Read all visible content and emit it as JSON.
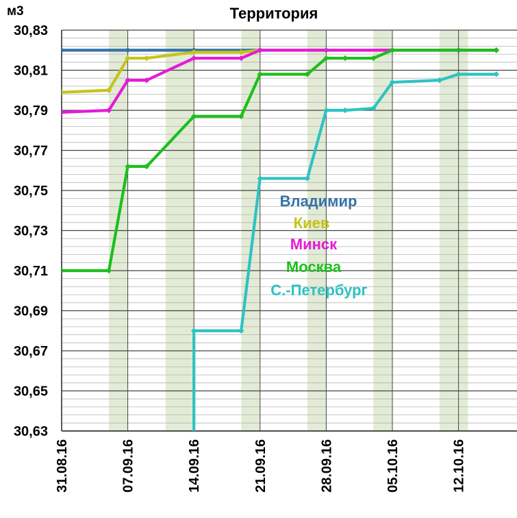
{
  "chart_data": {
    "type": "line",
    "title": "Территория",
    "ylabel": "м3",
    "ylim": [
      30.63,
      30.83
    ],
    "y_ticks": [
      "30,63",
      "30,65",
      "30,67",
      "30,69",
      "30,71",
      "30,73",
      "30,75",
      "30,77",
      "30,79",
      "30,81",
      "30,83"
    ],
    "x_tick_labels": [
      "31.08.16",
      "07.09.16",
      "14.09.16",
      "21.09.16",
      "28.09.16",
      "05.10.16",
      "12.10.16"
    ],
    "grid": true,
    "legend_placement": "center-right",
    "series": [
      {
        "name": "Владимир",
        "color": "#3572A8",
        "points": [
          [
            "31.08.16",
            30.82
          ],
          [
            "07.09.16",
            30.82
          ],
          [
            "14.09.16",
            30.82
          ],
          [
            "21.09.16",
            30.82
          ],
          [
            "28.09.16",
            30.82
          ],
          [
            "05.10.16",
            30.82
          ],
          [
            "12.10.16",
            30.82
          ],
          [
            "16.10.16",
            30.82
          ]
        ]
      },
      {
        "name": "Киев",
        "color": "#C4C41A",
        "points": [
          [
            "31.08.16",
            30.799
          ],
          [
            "05.09.16",
            30.8
          ],
          [
            "07.09.16",
            30.816
          ],
          [
            "09.09.16",
            30.816
          ],
          [
            "14.09.16",
            30.819
          ],
          [
            "19.09.16",
            30.819
          ],
          [
            "21.09.16",
            30.82
          ],
          [
            "16.10.16",
            30.82
          ]
        ]
      },
      {
        "name": "Минск",
        "color": "#E61AD9",
        "points": [
          [
            "31.08.16",
            30.789
          ],
          [
            "05.09.16",
            30.79
          ],
          [
            "07.09.16",
            30.805
          ],
          [
            "09.09.16",
            30.805
          ],
          [
            "14.09.16",
            30.816
          ],
          [
            "19.09.16",
            30.816
          ],
          [
            "21.09.16",
            30.82
          ],
          [
            "16.10.16",
            30.82
          ]
        ]
      },
      {
        "name": "Москва",
        "color": "#1CBF1C",
        "points": [
          [
            "31.08.16",
            30.71
          ],
          [
            "05.09.16",
            30.71
          ],
          [
            "07.09.16",
            30.762
          ],
          [
            "09.09.16",
            30.762
          ],
          [
            "14.09.16",
            30.787
          ],
          [
            "19.09.16",
            30.787
          ],
          [
            "21.09.16",
            30.808
          ],
          [
            "26.09.16",
            30.808
          ],
          [
            "28.09.16",
            30.816
          ],
          [
            "30.09.16",
            30.816
          ],
          [
            "03.10.16",
            30.816
          ],
          [
            "05.10.16",
            30.82
          ],
          [
            "16.10.16",
            30.82
          ]
        ]
      },
      {
        "name": "С.-Петербург",
        "color": "#2EC2C2",
        "points": [
          [
            "14.09.16",
            30.62
          ],
          [
            "14.09.16",
            30.68
          ],
          [
            "19.09.16",
            30.68
          ],
          [
            "21.09.16",
            30.756
          ],
          [
            "26.09.16",
            30.756
          ],
          [
            "28.09.16",
            30.79
          ],
          [
            "30.09.16",
            30.79
          ],
          [
            "03.10.16",
            30.791
          ],
          [
            "05.10.16",
            30.804
          ],
          [
            "10.10.16",
            30.805
          ],
          [
            "12.10.16",
            30.808
          ],
          [
            "16.10.16",
            30.808
          ]
        ]
      }
    ],
    "shaded_bands": [
      [
        "05.09.16",
        "07.09.16"
      ],
      [
        "11.09.16",
        "14.09.16"
      ],
      [
        "19.09.16",
        "21.09.16"
      ],
      [
        "26.09.16",
        "28.09.16"
      ],
      [
        "03.10.16",
        "05.10.16"
      ],
      [
        "10.10.16",
        "13.10.16"
      ]
    ],
    "band_color": "#E2EBD5"
  }
}
